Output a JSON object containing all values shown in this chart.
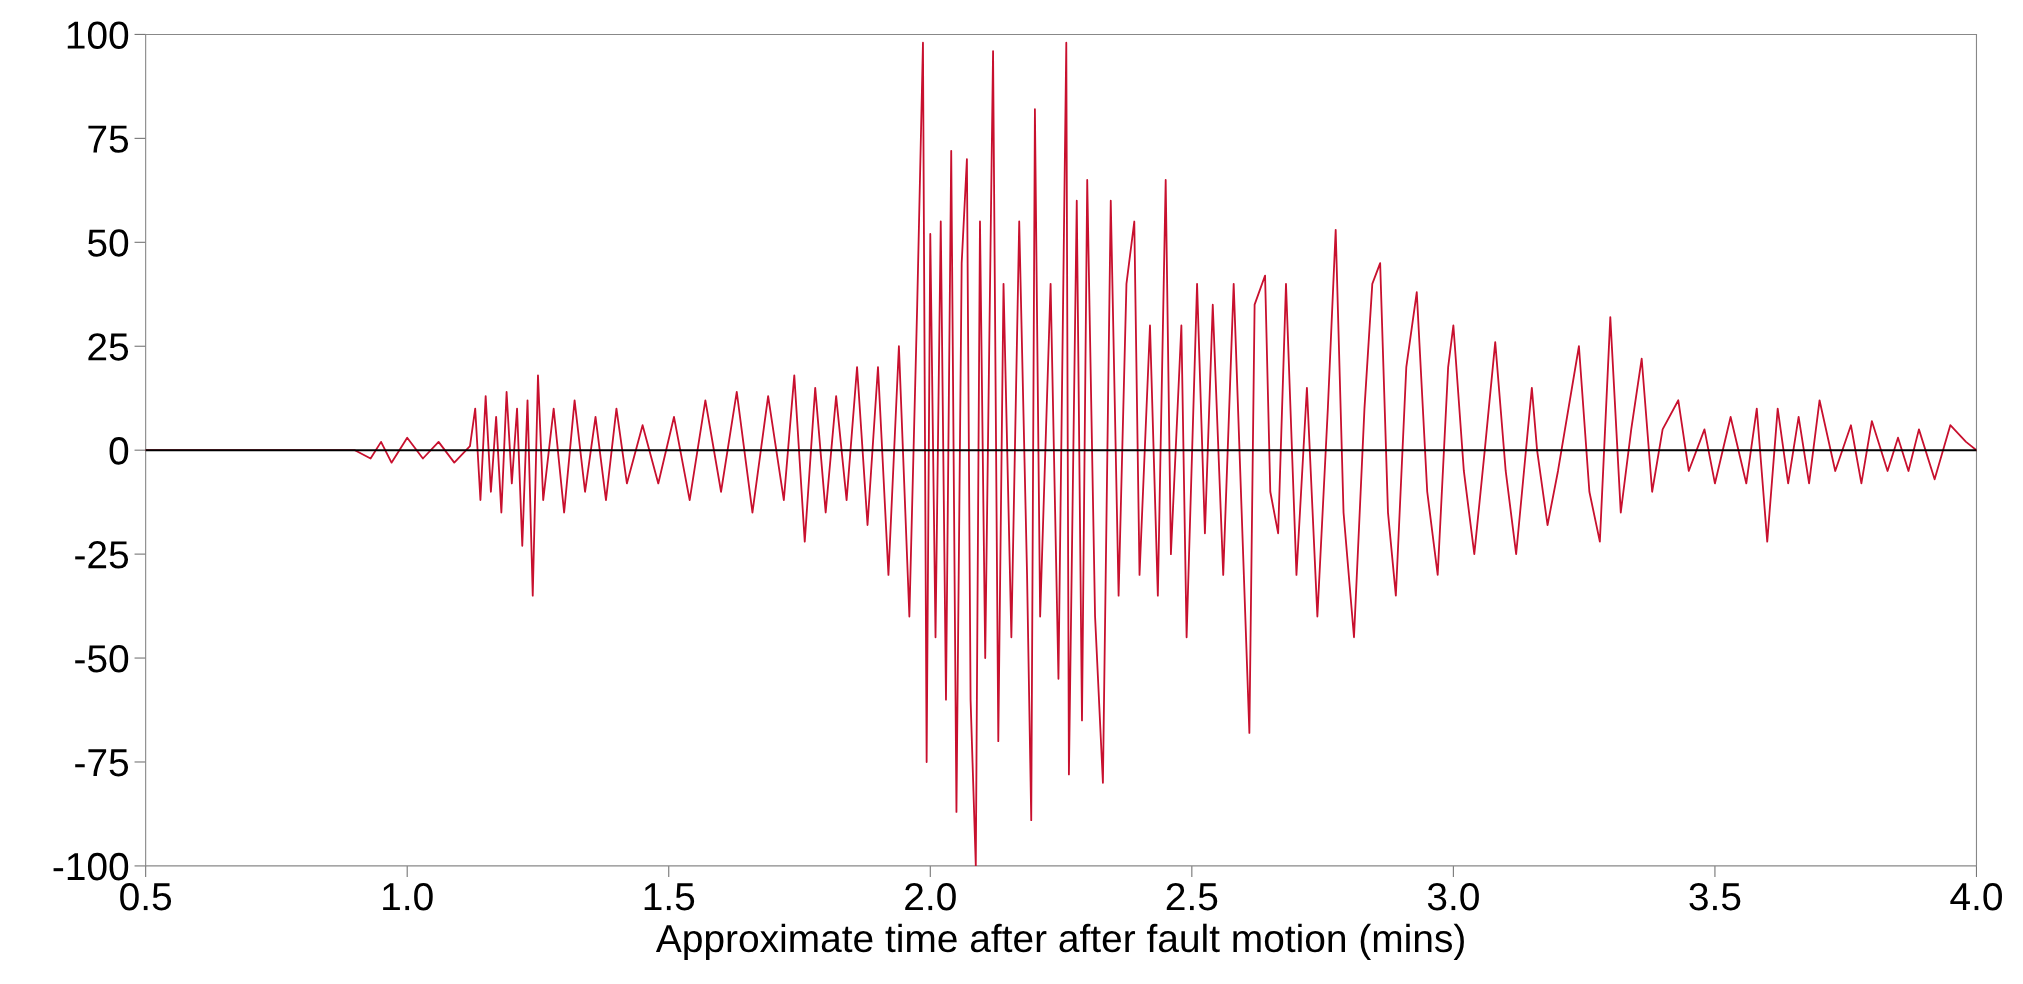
{
  "chart_data": {
    "type": "line",
    "xlabel": "Approximate time after after fault motion (mins)",
    "xlim": [
      0.5,
      4.0
    ],
    "xticks": [
      {
        "value": 0.5,
        "label": "0.5"
      },
      {
        "value": 1.0,
        "label": "1.0"
      },
      {
        "value": 1.5,
        "label": "1.5"
      },
      {
        "value": 2.0,
        "label": "2.0"
      },
      {
        "value": 2.5,
        "label": "2.5"
      },
      {
        "value": 3.0,
        "label": "3.0"
      },
      {
        "value": 3.5,
        "label": "3.5"
      },
      {
        "value": 4.0,
        "label": "4.0"
      }
    ],
    "ylim": [
      -100,
      100
    ],
    "yticks": [
      -100,
      -75,
      -50,
      -25,
      0,
      25,
      50,
      75,
      100
    ],
    "grid": false,
    "ref_lines": [
      {
        "axis": "y",
        "value": 0,
        "color": "#000000"
      }
    ],
    "series": [
      {
        "color": "#c8102e",
        "x": [
          0.5,
          0.9,
          0.93,
          0.95,
          0.97,
          1.0,
          1.03,
          1.06,
          1.09,
          1.12,
          1.13,
          1.14,
          1.15,
          1.16,
          1.17,
          1.18,
          1.19,
          1.2,
          1.21,
          1.22,
          1.23,
          1.24,
          1.25,
          1.26,
          1.28,
          1.3,
          1.32,
          1.34,
          1.36,
          1.38,
          1.4,
          1.42,
          1.45,
          1.48,
          1.51,
          1.54,
          1.57,
          1.6,
          1.63,
          1.66,
          1.69,
          1.72,
          1.74,
          1.76,
          1.78,
          1.8,
          1.82,
          1.84,
          1.86,
          1.88,
          1.9,
          1.92,
          1.94,
          1.96,
          1.975,
          1.986,
          1.993,
          2.0,
          2.01,
          2.02,
          2.03,
          2.04,
          2.05,
          2.06,
          2.07,
          2.077,
          2.087,
          2.095,
          2.105,
          2.12,
          2.13,
          2.14,
          2.155,
          2.17,
          2.185,
          2.193,
          2.2,
          2.21,
          2.23,
          2.245,
          2.26,
          2.265,
          2.28,
          2.29,
          2.3,
          2.315,
          2.33,
          2.345,
          2.36,
          2.375,
          2.39,
          2.4,
          2.42,
          2.435,
          2.45,
          2.46,
          2.48,
          2.49,
          2.51,
          2.525,
          2.54,
          2.56,
          2.58,
          2.61,
          2.62,
          2.64,
          2.65,
          2.665,
          2.68,
          2.7,
          2.72,
          2.74,
          2.76,
          2.775,
          2.79,
          2.81,
          2.83,
          2.845,
          2.86,
          2.875,
          2.89,
          2.91,
          2.93,
          2.95,
          2.97,
          2.99,
          3.0,
          3.02,
          3.04,
          3.06,
          3.08,
          3.1,
          3.12,
          3.15,
          3.16,
          3.18,
          3.2,
          3.24,
          3.26,
          3.28,
          3.3,
          3.32,
          3.34,
          3.36,
          3.38,
          3.4,
          3.43,
          3.45,
          3.48,
          3.5,
          3.53,
          3.56,
          3.58,
          3.6,
          3.62,
          3.64,
          3.66,
          3.68,
          3.7,
          3.73,
          3.76,
          3.78,
          3.8,
          3.83,
          3.85,
          3.87,
          3.89,
          3.92,
          3.95,
          3.98,
          4.0
        ],
        "values": [
          0,
          0,
          -2,
          2,
          -3,
          3,
          -2,
          2,
          -3,
          1,
          10,
          -12,
          13,
          -10,
          8,
          -15,
          14,
          -8,
          10,
          -23,
          12,
          -35,
          18,
          -12,
          10,
          -15,
          12,
          -10,
          8,
          -12,
          10,
          -8,
          6,
          -8,
          8,
          -12,
          12,
          -10,
          14,
          -15,
          13,
          -12,
          18,
          -22,
          15,
          -15,
          13,
          -12,
          20,
          -18,
          20,
          -30,
          25,
          -40,
          35,
          98,
          -75,
          52,
          -45,
          55,
          -60,
          72,
          -87,
          45,
          70,
          -60,
          -100,
          55,
          -50,
          96,
          -70,
          40,
          -45,
          55,
          -30,
          -89,
          82,
          -40,
          40,
          -55,
          98,
          -78,
          60,
          -65,
          65,
          -40,
          -80,
          60,
          -35,
          40,
          55,
          -30,
          30,
          -35,
          65,
          -25,
          30,
          -45,
          40,
          -20,
          35,
          -30,
          40,
          -68,
          35,
          42,
          -10,
          -20,
          40,
          -30,
          15,
          -40,
          10,
          53,
          -15,
          -45,
          10,
          40,
          45,
          -15,
          -35,
          20,
          38,
          -10,
          -30,
          20,
          30,
          -5,
          -25,
          0,
          26,
          -5,
          -25,
          15,
          0,
          -18,
          -5,
          25,
          -10,
          -22,
          32,
          -15,
          5,
          22,
          -10,
          5,
          12,
          -5,
          5,
          -8,
          8,
          -8,
          10,
          -22,
          10,
          -8,
          8,
          -8,
          12,
          -5,
          6,
          -8,
          7,
          -5,
          3,
          -5,
          5,
          -7,
          6,
          2,
          0
        ]
      }
    ]
  }
}
